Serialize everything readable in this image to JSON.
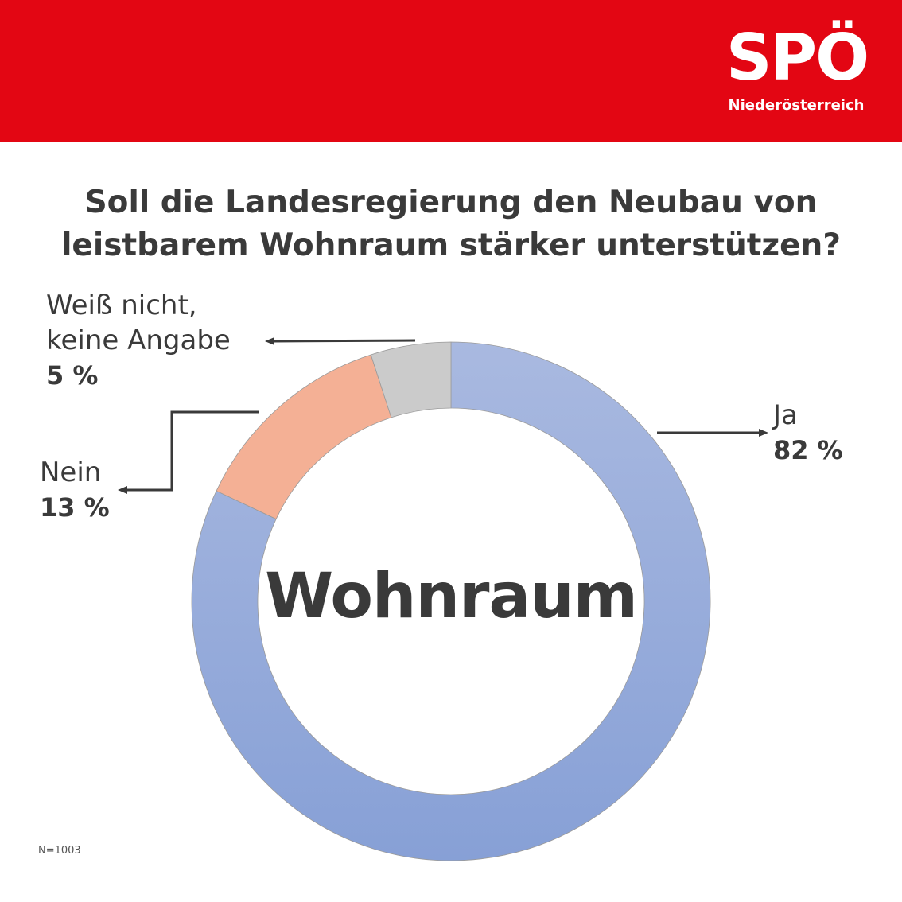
{
  "brand": {
    "name": "SPÖ",
    "region": "Niederösterreich",
    "color": "#e30613"
  },
  "title_lines": [
    "Soll die Landesregierung den Neubau von",
    "leistbarem Wohnraum stärker unterstützen?"
  ],
  "center_label": "Wohnraum",
  "sample_size": "N=1003",
  "chart_data": {
    "type": "pie",
    "variant": "donut",
    "title": "Soll die Landesregierung den Neubau von leistbarem Wohnraum stärker unterstützen?",
    "slices": [
      {
        "label": "Ja",
        "value": 82,
        "value_label": "82 %",
        "color": "#8fa6d8"
      },
      {
        "label": "Nein",
        "value": 13,
        "value_label": "13 %",
        "color": "#f4b095"
      },
      {
        "label_lines": [
          "Weiß nicht,",
          "keine Angabe"
        ],
        "label": "Weiß nicht, keine Angabe",
        "value": 5,
        "value_label": "5 %",
        "color": "#cbcbcb"
      }
    ],
    "start_angle": "top",
    "direction": "clockwise",
    "legend": "none"
  }
}
